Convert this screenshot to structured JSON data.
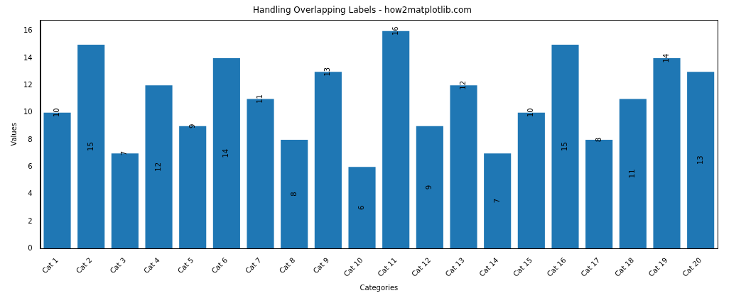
{
  "chart_data": {
    "type": "bar",
    "title": "Handling Overlapping Labels - how2matplotlib.com",
    "x_label": "Categories",
    "y_label": "Values",
    "categories": [
      "Cat 1",
      "Cat 2",
      "Cat 3",
      "Cat 4",
      "Cat 5",
      "Cat 6",
      "Cat 7",
      "Cat 8",
      "Cat 9",
      "Cat 10",
      "Cat 11",
      "Cat 12",
      "Cat 13",
      "Cat 14",
      "Cat 15",
      "Cat 16",
      "Cat 17",
      "Cat 18",
      "Cat 19",
      "Cat 20"
    ],
    "values": [
      10,
      15,
      7,
      12,
      9,
      14,
      11,
      8,
      13,
      6,
      16,
      9,
      12,
      7,
      10,
      15,
      8,
      11,
      14,
      13
    ],
    "color": "#1f77b4",
    "ylim": [
      0,
      16.8
    ],
    "yticks": [
      0,
      2,
      4,
      6,
      8,
      10,
      12,
      14,
      16
    ],
    "grid": false,
    "data_labels": true
  }
}
